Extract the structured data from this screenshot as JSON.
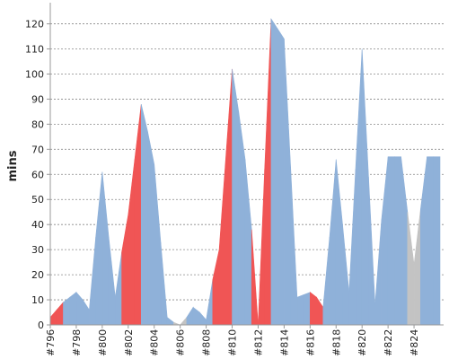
{
  "chart_data": {
    "type": "area",
    "ylabel": "mins",
    "xlabel": "",
    "title": "",
    "ylim": [
      0,
      127
    ],
    "yticks": [
      0,
      10,
      20,
      30,
      40,
      50,
      60,
      70,
      80,
      90,
      100,
      110,
      120
    ],
    "grid": true,
    "x_ticks": [
      "#796",
      "#798",
      "#800",
      "#802",
      "#804",
      "#806",
      "#808",
      "#810",
      "#812",
      "#814",
      "#816",
      "#818",
      "#820",
      "#822",
      "#824"
    ],
    "x_range": [
      796,
      826
    ],
    "x": [
      796,
      796.5,
      797,
      797.5,
      798,
      798.5,
      799,
      799.5,
      800,
      800.5,
      801,
      801.5,
      802,
      802.5,
      803,
      803.5,
      804,
      804.5,
      805,
      805.5,
      806,
      806.5,
      807,
      807.5,
      808,
      808.5,
      809,
      809.5,
      810,
      810.5,
      811,
      811.5,
      812,
      812.5,
      813,
      813.5,
      814,
      814.5,
      815,
      815.5,
      816,
      816.5,
      817,
      817.5,
      818,
      818.5,
      819,
      819.5,
      820,
      820.5,
      821,
      821.5,
      822,
      822.5,
      823,
      823.5,
      824,
      824.5,
      825,
      825.5,
      826
    ],
    "values": [
      3,
      6,
      9,
      11,
      13,
      10,
      6,
      35,
      61,
      35,
      11,
      29,
      44,
      66,
      88,
      77,
      64,
      33,
      3,
      1,
      0,
      3,
      7,
      5,
      2,
      18,
      30,
      66,
      102,
      85,
      66,
      38,
      0,
      62,
      122,
      118,
      114,
      63,
      11,
      12,
      13,
      11,
      7,
      35,
      66,
      40,
      13,
      62,
      110,
      59,
      8,
      42,
      67,
      67,
      67,
      45,
      24,
      46,
      67,
      67,
      67
    ],
    "colors": [
      "red",
      "red",
      "blue",
      "blue",
      "blue",
      "blue",
      "blue",
      "blue",
      "blue",
      "blue",
      "blue",
      "red",
      "red",
      "red",
      "blue",
      "blue",
      "blue",
      "blue",
      "blue",
      "gray",
      "gray",
      "blue",
      "blue",
      "blue",
      "blue",
      "red",
      "red",
      "red",
      "blue",
      "blue",
      "blue",
      "red",
      "red",
      "red",
      "blue",
      "blue",
      "blue",
      "blue",
      "blue",
      "blue",
      "red",
      "red",
      "blue",
      "blue",
      "blue",
      "blue",
      "blue",
      "blue",
      "blue",
      "blue",
      "blue",
      "blue",
      "blue",
      "blue",
      "blue",
      "gray",
      "gray",
      "blue",
      "blue",
      "blue",
      "blue"
    ],
    "palette": {
      "blue": "#8fb1d9",
      "red": "#f05555",
      "gray": "#c3c3c3"
    },
    "grid_color": "#888888",
    "axis_color": "#999999"
  }
}
